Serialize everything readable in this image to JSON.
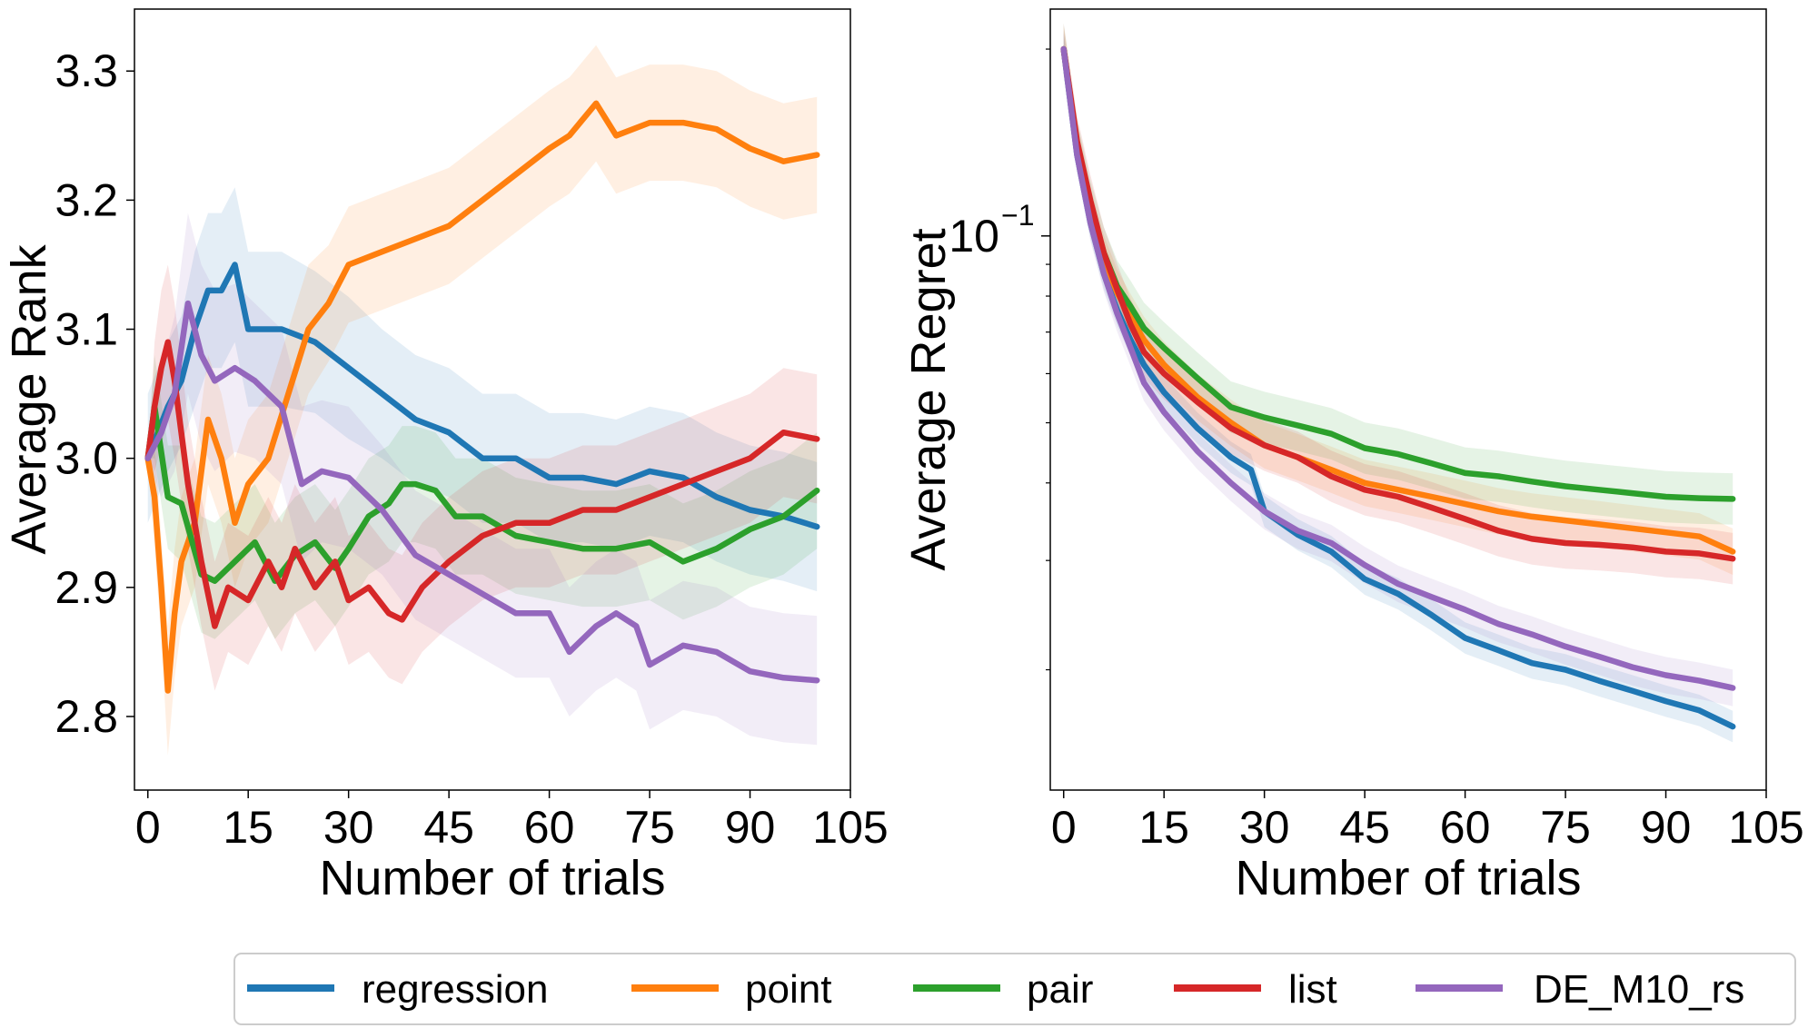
{
  "colors": {
    "regression": "#1f77b4",
    "point": "#ff7f0e",
    "pair": "#2ca02c",
    "list": "#d62728",
    "DE_M10_rs": "#9467bd"
  },
  "legend": {
    "placement": "bottom-center",
    "entries": [
      "regression",
      "point",
      "pair",
      "list",
      "DE_M10_rs"
    ]
  },
  "chart_data": [
    {
      "type": "line",
      "title": "",
      "xlabel": "Number of trials",
      "ylabel": "Average Rank",
      "xlim": [
        -2,
        105
      ],
      "ylim": [
        2.743,
        3.348
      ],
      "xticks": [
        0,
        15,
        30,
        45,
        60,
        75,
        90,
        105
      ],
      "yticks": [
        2.8,
        2.9,
        3.0,
        3.1,
        3.2,
        3.3
      ],
      "ytick_labels": [
        "2.8",
        "2.9",
        "3.0",
        "3.1",
        "3.2",
        "3.3"
      ],
      "grid": false,
      "shaded_band": true,
      "series": [
        {
          "name": "regression",
          "x": [
            0,
            3,
            5,
            7,
            9,
            11,
            13,
            15,
            20,
            25,
            30,
            35,
            40,
            45,
            50,
            55,
            60,
            65,
            70,
            75,
            80,
            85,
            90,
            95,
            100
          ],
          "y": [
            3.0,
            3.04,
            3.06,
            3.1,
            3.13,
            3.13,
            3.15,
            3.1,
            3.1,
            3.09,
            3.07,
            3.05,
            3.03,
            3.02,
            3.0,
            3.0,
            2.985,
            2.985,
            2.98,
            2.99,
            2.985,
            2.97,
            2.96,
            2.955,
            2.947
          ],
          "band": [
            0.05,
            0.05,
            0.05,
            0.06,
            0.06,
            0.06,
            0.06,
            0.06,
            0.06,
            0.055,
            0.055,
            0.05,
            0.05,
            0.05,
            0.05,
            0.05,
            0.05,
            0.05,
            0.05,
            0.05,
            0.05,
            0.05,
            0.05,
            0.05,
            0.05
          ]
        },
        {
          "name": "point",
          "x": [
            0,
            1,
            2,
            3,
            4,
            5,
            7,
            9,
            11,
            13,
            15,
            18,
            21,
            24,
            27,
            30,
            35,
            40,
            45,
            50,
            55,
            60,
            63,
            67,
            70,
            75,
            80,
            85,
            90,
            95,
            100
          ],
          "y": [
            3.0,
            2.97,
            2.9,
            2.82,
            2.88,
            2.92,
            2.95,
            3.03,
            3.0,
            2.95,
            2.98,
            3.0,
            3.05,
            3.1,
            3.12,
            3.15,
            3.16,
            3.17,
            3.18,
            3.2,
            3.22,
            3.24,
            3.25,
            3.275,
            3.25,
            3.26,
            3.26,
            3.255,
            3.24,
            3.23,
            3.235
          ],
          "band": [
            0.0,
            0.04,
            0.04,
            0.05,
            0.05,
            0.05,
            0.05,
            0.05,
            0.05,
            0.05,
            0.05,
            0.05,
            0.05,
            0.05,
            0.045,
            0.045,
            0.045,
            0.045,
            0.045,
            0.045,
            0.045,
            0.045,
            0.045,
            0.045,
            0.045,
            0.045,
            0.045,
            0.045,
            0.045,
            0.045,
            0.045
          ]
        },
        {
          "name": "pair",
          "x": [
            0,
            1,
            3,
            5,
            8,
            10,
            13,
            16,
            19,
            22,
            25,
            28,
            30,
            33,
            36,
            38,
            40,
            43,
            46,
            50,
            55,
            60,
            65,
            70,
            75,
            80,
            85,
            90,
            95,
            100
          ],
          "y": [
            3.0,
            3.04,
            2.97,
            2.965,
            2.91,
            2.905,
            2.92,
            2.935,
            2.905,
            2.925,
            2.935,
            2.915,
            2.93,
            2.955,
            2.965,
            2.98,
            2.98,
            2.975,
            2.955,
            2.955,
            2.94,
            2.935,
            2.93,
            2.93,
            2.935,
            2.92,
            2.93,
            2.945,
            2.955,
            2.975
          ],
          "band": [
            0.0,
            0.04,
            0.04,
            0.045,
            0.045,
            0.045,
            0.045,
            0.045,
            0.045,
            0.045,
            0.045,
            0.045,
            0.045,
            0.045,
            0.045,
            0.045,
            0.045,
            0.045,
            0.045,
            0.045,
            0.045,
            0.045,
            0.045,
            0.045,
            0.045,
            0.045,
            0.045,
            0.045,
            0.045,
            0.045
          ]
        },
        {
          "name": "list",
          "x": [
            0,
            1,
            2,
            3,
            4,
            6,
            8,
            10,
            12,
            15,
            18,
            20,
            22,
            25,
            28,
            30,
            33,
            36,
            38,
            41,
            45,
            50,
            55,
            60,
            65,
            70,
            75,
            80,
            85,
            90,
            95,
            100
          ],
          "y": [
            3.0,
            3.04,
            3.07,
            3.09,
            3.06,
            2.98,
            2.92,
            2.87,
            2.9,
            2.89,
            2.92,
            2.9,
            2.93,
            2.9,
            2.92,
            2.89,
            2.9,
            2.88,
            2.875,
            2.9,
            2.92,
            2.94,
            2.95,
            2.95,
            2.96,
            2.96,
            2.97,
            2.98,
            2.99,
            3.0,
            3.02,
            3.015
          ],
          "band": [
            0.0,
            0.05,
            0.06,
            0.06,
            0.06,
            0.05,
            0.05,
            0.05,
            0.05,
            0.05,
            0.05,
            0.05,
            0.05,
            0.05,
            0.05,
            0.05,
            0.05,
            0.05,
            0.05,
            0.05,
            0.05,
            0.05,
            0.05,
            0.05,
            0.05,
            0.05,
            0.05,
            0.05,
            0.05,
            0.05,
            0.05,
            0.05
          ]
        },
        {
          "name": "DE_M10_rs",
          "x": [
            0,
            2,
            4,
            6,
            8,
            10,
            13,
            16,
            20,
            23,
            26,
            30,
            35,
            40,
            45,
            50,
            55,
            60,
            63,
            67,
            70,
            73,
            75,
            80,
            85,
            90,
            95,
            100
          ],
          "y": [
            3.0,
            3.02,
            3.05,
            3.12,
            3.08,
            3.06,
            3.07,
            3.06,
            3.04,
            2.98,
            2.99,
            2.985,
            2.96,
            2.925,
            2.91,
            2.895,
            2.88,
            2.88,
            2.85,
            2.87,
            2.88,
            2.87,
            2.84,
            2.855,
            2.85,
            2.835,
            2.83,
            2.828
          ],
          "band": [
            0.0,
            0.05,
            0.06,
            0.07,
            0.07,
            0.07,
            0.065,
            0.06,
            0.06,
            0.06,
            0.055,
            0.055,
            0.05,
            0.05,
            0.05,
            0.05,
            0.05,
            0.05,
            0.05,
            0.05,
            0.05,
            0.05,
            0.05,
            0.05,
            0.05,
            0.05,
            0.05,
            0.05
          ]
        }
      ]
    },
    {
      "type": "line",
      "title": "",
      "xlabel": "Number of trials",
      "ylabel": "Average Regret",
      "yscale": "log",
      "xlim": [
        -2,
        105
      ],
      "ylim": [
        0.0128,
        0.232
      ],
      "xticks": [
        0,
        15,
        30,
        45,
        60,
        75,
        90,
        105
      ],
      "yticks_major": [
        0.1
      ],
      "ytick_labels": [
        "10",
        "−1"
      ],
      "yticks_minor": [
        0.02,
        0.03,
        0.04,
        0.05,
        0.06,
        0.07,
        0.08,
        0.09,
        0.2
      ],
      "grid": false,
      "shaded_band": true,
      "series": [
        {
          "name": "regression",
          "x": [
            0,
            2,
            4,
            6,
            8,
            10,
            12,
            15,
            20,
            25,
            28,
            30,
            35,
            40,
            45,
            50,
            55,
            60,
            65,
            70,
            75,
            80,
            85,
            90,
            95,
            100
          ],
          "y": [
            0.2,
            0.135,
            0.105,
            0.087,
            0.076,
            0.068,
            0.062,
            0.056,
            0.049,
            0.044,
            0.042,
            0.036,
            0.033,
            0.031,
            0.028,
            0.0265,
            0.0245,
            0.0225,
            0.0215,
            0.0205,
            0.02,
            0.0192,
            0.0185,
            0.0178,
            0.0172,
            0.0162
          ],
          "band_frac": 0.06
        },
        {
          "name": "point",
          "x": [
            0,
            2,
            4,
            6,
            8,
            10,
            12,
            15,
            20,
            25,
            30,
            35,
            40,
            45,
            50,
            55,
            60,
            65,
            70,
            75,
            80,
            85,
            90,
            95,
            100
          ],
          "y": [
            0.2,
            0.14,
            0.11,
            0.092,
            0.081,
            0.074,
            0.068,
            0.062,
            0.055,
            0.05,
            0.046,
            0.044,
            0.042,
            0.04,
            0.039,
            0.038,
            0.037,
            0.036,
            0.0353,
            0.0348,
            0.0343,
            0.0338,
            0.0333,
            0.0328,
            0.031
          ],
          "band_frac": 0.09
        },
        {
          "name": "pair",
          "x": [
            0,
            2,
            4,
            6,
            8,
            10,
            12,
            15,
            20,
            25,
            30,
            35,
            40,
            45,
            50,
            55,
            60,
            65,
            70,
            75,
            80,
            85,
            90,
            95,
            100
          ],
          "y": [
            0.2,
            0.14,
            0.112,
            0.094,
            0.083,
            0.077,
            0.071,
            0.066,
            0.059,
            0.053,
            0.051,
            0.0495,
            0.048,
            0.0455,
            0.0445,
            0.043,
            0.0415,
            0.041,
            0.0402,
            0.0395,
            0.039,
            0.0385,
            0.038,
            0.0378,
            0.0377
          ],
          "band_frac": 0.1
        },
        {
          "name": "list",
          "x": [
            0,
            2,
            4,
            6,
            8,
            10,
            12,
            15,
            20,
            25,
            30,
            35,
            40,
            45,
            50,
            55,
            60,
            65,
            70,
            75,
            80,
            85,
            90,
            95,
            100
          ],
          "y": [
            0.2,
            0.142,
            0.114,
            0.094,
            0.082,
            0.072,
            0.065,
            0.06,
            0.054,
            0.049,
            0.046,
            0.044,
            0.041,
            0.039,
            0.038,
            0.0365,
            0.035,
            0.0335,
            0.0325,
            0.032,
            0.0318,
            0.0315,
            0.031,
            0.0308,
            0.0302
          ],
          "band_frac": 0.1
        },
        {
          "name": "DE_M10_rs",
          "x": [
            0,
            2,
            4,
            6,
            8,
            10,
            12,
            15,
            20,
            25,
            30,
            35,
            40,
            45,
            50,
            55,
            60,
            65,
            70,
            75,
            80,
            85,
            90,
            95,
            100
          ],
          "y": [
            0.2,
            0.135,
            0.105,
            0.087,
            0.075,
            0.066,
            0.058,
            0.052,
            0.045,
            0.04,
            0.036,
            0.0335,
            0.032,
            0.0295,
            0.0275,
            0.0262,
            0.025,
            0.0237,
            0.0228,
            0.0218,
            0.021,
            0.0202,
            0.0196,
            0.0192,
            0.0187
          ],
          "band_frac": 0.07
        }
      ]
    }
  ]
}
